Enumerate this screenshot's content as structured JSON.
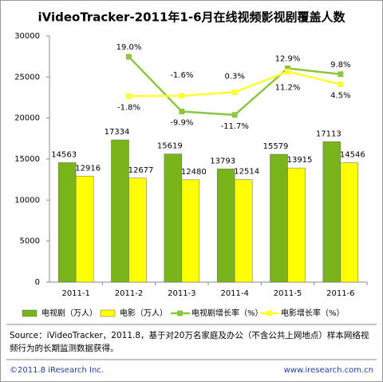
{
  "chart_data": {
    "type": "bar",
    "title": "iVideoTracker-2011年1-6月在线视频影视剧覆盖人数",
    "categories": [
      "2011-1",
      "2011-2",
      "2011-3",
      "2011-4",
      "2011-5",
      "2011-6"
    ],
    "ylim": [
      0,
      30000
    ],
    "yticks": [
      0,
      5000,
      10000,
      15000,
      20000,
      25000,
      30000
    ],
    "y2lim": [
      -100,
      30
    ],
    "series": [
      {
        "name": "电视剧（万人）",
        "type": "bar",
        "color": "#79b41a",
        "values": [
          14563,
          17334,
          15619,
          13793,
          15579,
          17113
        ]
      },
      {
        "name": "电影（万人）",
        "type": "bar",
        "color": "#ffff00",
        "values": [
          12916,
          12677,
          12480,
          12514,
          13915,
          14546
        ]
      },
      {
        "name": "电视剧增长率（%）",
        "type": "line",
        "axis": "y2",
        "color": "#8cc63f",
        "values": [
          null,
          19.0,
          -9.9,
          -11.7,
          12.9,
          9.8
        ],
        "value_labels": [
          null,
          "19.0%",
          "-9.9%",
          "-11.7%",
          "12.9%",
          "9.8%"
        ]
      },
      {
        "name": "电影增长率（%）",
        "type": "line",
        "axis": "y2",
        "color": "#ffff33",
        "values": [
          null,
          -1.8,
          -1.6,
          0.3,
          11.2,
          4.5
        ],
        "value_labels": [
          null,
          "-1.8%",
          "-1.6%",
          "0.3%",
          "11.2%",
          "4.5%"
        ]
      }
    ]
  },
  "source": "Source：iVideoTracker，2011.8，基于对20万名家庭及办公（不含公共上网地点）样本网络视频行为的长期监测数据获得。",
  "copyright": "©2011.8 iResearch Inc.",
  "website": "www.iresearch.com.cn"
}
